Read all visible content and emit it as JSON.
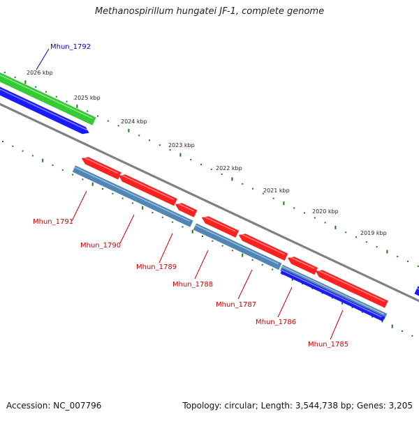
{
  "title": "Methanospirillum hungatei JF-1, complete genome",
  "accession": "Accession: NC_007796",
  "summary": "Topology: circular; Length: 3,544,738 bp; Genes: 3,205",
  "colors": {
    "backbone": "#808080",
    "tick": "#1a7a1a",
    "forward_gene": "#ff2020",
    "reverse_gene": "#1a1aff",
    "pseudo_gene": "#4f86b8",
    "trna_gene": "#33cc33",
    "label_red": "#cc0000",
    "label_blue": "#0000cc"
  },
  "scale_labels": [
    "2026 kbp",
    "2025 kbp",
    "2024 kbp",
    "2023 kbp",
    "2022 kbp",
    "2021 kbp",
    "2020 kbp",
    "2019 kbp"
  ],
  "genes": [
    {
      "name": "Mhun_1792",
      "color": "blue"
    },
    {
      "name": "Mhun_1791",
      "color": "red"
    },
    {
      "name": "Mhun_1790",
      "color": "red"
    },
    {
      "name": "Mhun_1789",
      "color": "red"
    },
    {
      "name": "Mhun_1788",
      "color": "red"
    },
    {
      "name": "Mhun_1787",
      "color": "red"
    },
    {
      "name": "Mhun_1786",
      "color": "red"
    },
    {
      "name": "Mhun_1785",
      "color": "red"
    }
  ]
}
